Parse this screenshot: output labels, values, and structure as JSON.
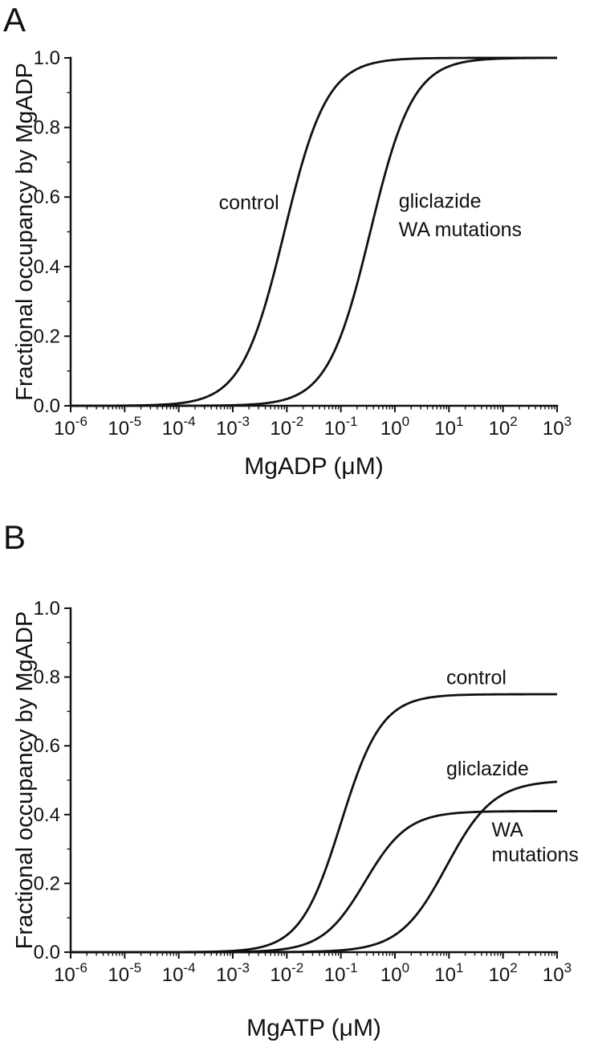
{
  "figure": {
    "background": "#ffffff",
    "line_color": "#111111"
  },
  "chart_data": [
    {
      "panel_label": "A",
      "type": "line",
      "xscale": "log",
      "xlabel": "MgADP (μM)",
      "ylabel": "Fractional occupancy by MgADP",
      "xlim_exponents": [
        -6,
        3
      ],
      "ylim": [
        0.0,
        1.0
      ],
      "xtick_exponents": [
        -6,
        -5,
        -4,
        -3,
        -2,
        -1,
        0,
        1,
        2,
        3
      ],
      "ytick_values": [
        0.0,
        0.2,
        0.4,
        0.6,
        0.8,
        1.0
      ],
      "ytick_labels": [
        "0.0",
        "0.2",
        "0.4",
        "0.6",
        "0.8",
        "1.0"
      ],
      "grid": false,
      "legend": "none",
      "series": [
        {
          "name": "control",
          "model": "hill",
          "ymax": 1.0,
          "ec50_uM": 0.009,
          "hill": 1.1
        },
        {
          "name": "gliclazide WA mutations",
          "model": "hill",
          "ymax": 1.0,
          "ec50_uM": 0.35,
          "hill": 1.1
        }
      ],
      "annotations": [
        {
          "text": "control",
          "x_exp": -2.7,
          "y": 0.585,
          "anchor": "middle"
        },
        {
          "text": "gliclazide",
          "x_exp": 0.07,
          "y": 0.59,
          "anchor": "start"
        },
        {
          "text": "WA mutations",
          "x_exp": 0.07,
          "y": 0.508,
          "anchor": "start"
        }
      ]
    },
    {
      "panel_label": "B",
      "type": "line",
      "xscale": "log",
      "xlabel": "MgATP (μM)",
      "ylabel": "Fractional occupancy by MgADP",
      "xlim_exponents": [
        -6,
        3
      ],
      "ylim": [
        0.0,
        1.0
      ],
      "xtick_exponents": [
        -6,
        -5,
        -4,
        -3,
        -2,
        -1,
        0,
        1,
        2,
        3
      ],
      "ytick_values": [
        0.0,
        0.2,
        0.4,
        0.6,
        0.8,
        1.0
      ],
      "ytick_labels": [
        "0.0",
        "0.2",
        "0.4",
        "0.6",
        "0.8",
        "1.0"
      ],
      "grid": false,
      "legend": "none",
      "series": [
        {
          "name": "control",
          "model": "hill",
          "ymax": 0.75,
          "ec50_uM": 0.1,
          "hill": 1.15
        },
        {
          "name": "WA mutations",
          "model": "hill",
          "ymax": 0.41,
          "ec50_uM": 0.28,
          "hill": 1.1
        },
        {
          "name": "gliclazide",
          "model": "hill",
          "ymax": 0.5,
          "ec50_uM": 9.0,
          "hill": 1.0
        }
      ],
      "annotations": [
        {
          "text": "control",
          "x_exp": 0.95,
          "y": 0.8,
          "anchor": "start"
        },
        {
          "text": "gliclazide",
          "x_exp": 0.95,
          "y": 0.535,
          "anchor": "start"
        },
        {
          "text": "WA",
          "x_exp": 1.79,
          "y": 0.358,
          "anchor": "start"
        },
        {
          "text": "mutations",
          "x_exp": 1.79,
          "y": 0.285,
          "anchor": "start"
        }
      ]
    }
  ]
}
